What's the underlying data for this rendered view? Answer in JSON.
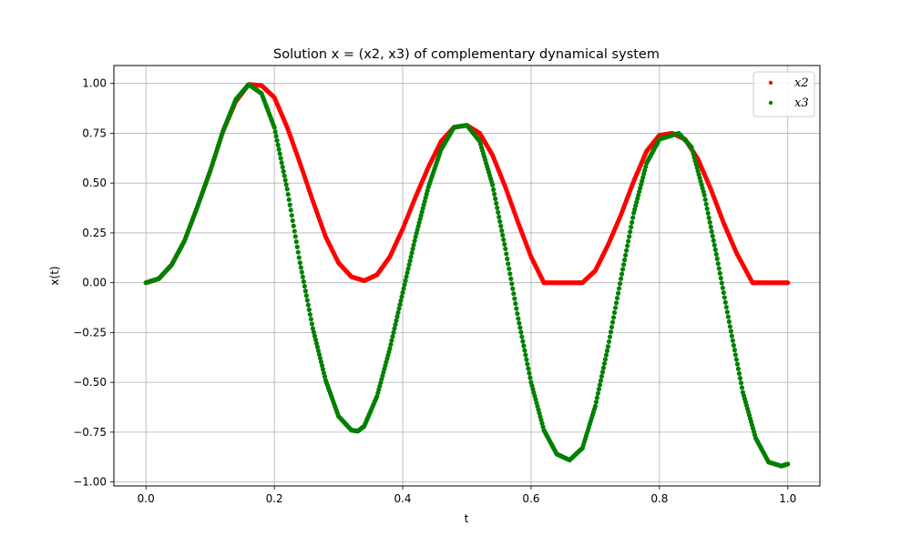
{
  "chart_data": {
    "type": "scatter",
    "title": "Solution x = (x2, x3) of complementary dynamical system",
    "xlabel": "t",
    "ylabel": "x(t)",
    "xlim": [
      -0.05,
      1.05
    ],
    "ylim": [
      -1.02,
      1.09
    ],
    "grid": true,
    "legend_position": "top-right",
    "xticks": [
      0.0,
      0.2,
      0.4,
      0.6,
      0.8,
      1.0
    ],
    "xtick_labels": [
      "0.0",
      "0.2",
      "0.4",
      "0.6",
      "0.8",
      "1.0"
    ],
    "yticks": [
      -1.0,
      -0.75,
      -0.5,
      -0.25,
      0.0,
      0.25,
      0.5,
      0.75,
      1.0
    ],
    "ytick_labels": [
      "−1.00",
      "−0.75",
      "−0.50",
      "−0.25",
      "0.00",
      "0.25",
      "0.50",
      "0.75",
      "1.00"
    ],
    "series": [
      {
        "name": "x2",
        "color": "#ff0000",
        "points": [
          [
            0.0,
            0.0
          ],
          [
            0.02,
            0.02
          ],
          [
            0.04,
            0.09
          ],
          [
            0.06,
            0.21
          ],
          [
            0.08,
            0.38
          ],
          [
            0.1,
            0.56
          ],
          [
            0.12,
            0.76
          ],
          [
            0.14,
            0.91
          ],
          [
            0.16,
            0.995
          ],
          [
            0.18,
            0.99
          ],
          [
            0.2,
            0.93
          ],
          [
            0.22,
            0.78
          ],
          [
            0.24,
            0.6
          ],
          [
            0.26,
            0.41
          ],
          [
            0.28,
            0.23
          ],
          [
            0.3,
            0.1
          ],
          [
            0.32,
            0.03
          ],
          [
            0.34,
            0.01
          ],
          [
            0.36,
            0.04
          ],
          [
            0.38,
            0.13
          ],
          [
            0.4,
            0.27
          ],
          [
            0.42,
            0.43
          ],
          [
            0.44,
            0.58
          ],
          [
            0.46,
            0.71
          ],
          [
            0.48,
            0.78
          ],
          [
            0.5,
            0.79
          ],
          [
            0.52,
            0.75
          ],
          [
            0.54,
            0.64
          ],
          [
            0.56,
            0.48
          ],
          [
            0.58,
            0.3
          ],
          [
            0.6,
            0.13
          ],
          [
            0.62,
            0.0
          ],
          [
            0.64,
            0.0
          ],
          [
            0.66,
            0.0
          ],
          [
            0.68,
            0.0
          ],
          [
            0.7,
            0.06
          ],
          [
            0.72,
            0.19
          ],
          [
            0.74,
            0.34
          ],
          [
            0.76,
            0.51
          ],
          [
            0.78,
            0.66
          ],
          [
            0.8,
            0.74
          ],
          [
            0.82,
            0.75
          ],
          [
            0.84,
            0.72
          ],
          [
            0.86,
            0.62
          ],
          [
            0.88,
            0.47
          ],
          [
            0.9,
            0.3
          ],
          [
            0.92,
            0.15
          ],
          [
            0.945,
            0.0
          ],
          [
            0.96,
            0.0
          ],
          [
            0.98,
            0.0
          ],
          [
            1.0,
            0.0
          ]
        ]
      },
      {
        "name": "x3",
        "color": "#008000",
        "points": [
          [
            0.0,
            0.0
          ],
          [
            0.02,
            0.02
          ],
          [
            0.04,
            0.09
          ],
          [
            0.06,
            0.21
          ],
          [
            0.08,
            0.38
          ],
          [
            0.1,
            0.56
          ],
          [
            0.12,
            0.76
          ],
          [
            0.14,
            0.92
          ],
          [
            0.16,
            0.995
          ],
          [
            0.18,
            0.95
          ],
          [
            0.2,
            0.78
          ],
          [
            0.22,
            0.47
          ],
          [
            0.24,
            0.1
          ],
          [
            0.26,
            -0.23
          ],
          [
            0.28,
            -0.49
          ],
          [
            0.3,
            -0.67
          ],
          [
            0.32,
            -0.74
          ],
          [
            0.33,
            -0.745
          ],
          [
            0.34,
            -0.72
          ],
          [
            0.36,
            -0.57
          ],
          [
            0.38,
            -0.33
          ],
          [
            0.4,
            -0.05
          ],
          [
            0.42,
            0.23
          ],
          [
            0.44,
            0.48
          ],
          [
            0.46,
            0.67
          ],
          [
            0.48,
            0.78
          ],
          [
            0.5,
            0.79
          ],
          [
            0.52,
            0.71
          ],
          [
            0.54,
            0.49
          ],
          [
            0.56,
            0.17
          ],
          [
            0.58,
            -0.18
          ],
          [
            0.6,
            -0.5
          ],
          [
            0.62,
            -0.74
          ],
          [
            0.64,
            -0.86
          ],
          [
            0.66,
            -0.89
          ],
          [
            0.68,
            -0.83
          ],
          [
            0.7,
            -0.62
          ],
          [
            0.72,
            -0.32
          ],
          [
            0.74,
            0.02
          ],
          [
            0.76,
            0.35
          ],
          [
            0.78,
            0.6
          ],
          [
            0.8,
            0.72
          ],
          [
            0.83,
            0.75
          ],
          [
            0.85,
            0.68
          ],
          [
            0.87,
            0.44
          ],
          [
            0.89,
            0.12
          ],
          [
            0.91,
            -0.22
          ],
          [
            0.93,
            -0.55
          ],
          [
            0.95,
            -0.78
          ],
          [
            0.97,
            -0.9
          ],
          [
            0.99,
            -0.92
          ],
          [
            1.0,
            -0.91
          ]
        ]
      }
    ]
  }
}
